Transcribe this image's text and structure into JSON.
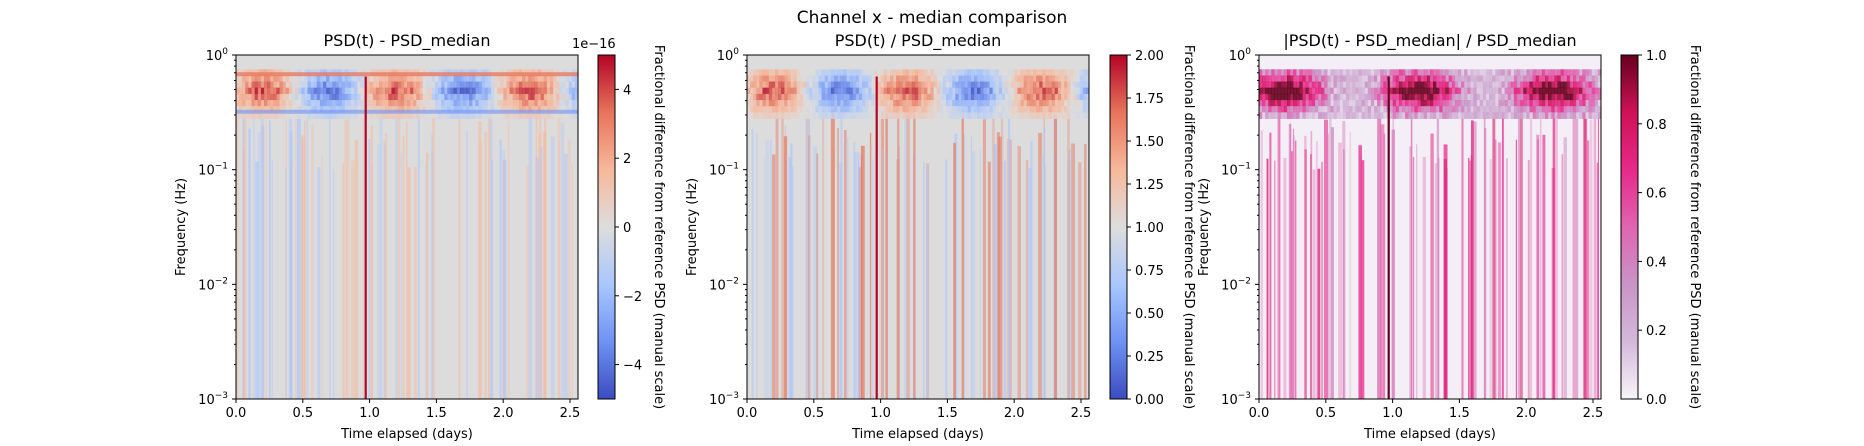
{
  "figure": {
    "suptitle": "Channel x - median comparison"
  },
  "colors": {
    "coolwarm": [
      "#3b4cc0",
      "#6f92f3",
      "#aac7fd",
      "#dddddd",
      "#f7b89c",
      "#e7745b",
      "#b40426"
    ],
    "pink": [
      "#f7f4f9",
      "#d4b9da",
      "#c994c7",
      "#df65b0",
      "#e7298a",
      "#ce1256",
      "#67001f"
    ],
    "background_diverging": "#dcdcdc",
    "background_sequential": "#f4eff6"
  },
  "chart_data": [
    {
      "type": "heatmap",
      "title": "PSD(t) - PSD_median",
      "xlabel": "Time elapsed (days)",
      "ylabel": "Frequency (Hz)",
      "xlim": [
        0.0,
        2.56
      ],
      "ylim": [
        0.001,
        1.0
      ],
      "yscale": "log",
      "xticks": [
        "0.0",
        "0.5",
        "1.0",
        "1.5",
        "2.0",
        "2.5"
      ],
      "yticks": [
        "10^0",
        "10^-1",
        "10^-2",
        "10^-3"
      ],
      "colormap": "coolwarm",
      "colorbar": {
        "label": "Fractional difference from reference PSD (manual scale)",
        "offset_text": "1e−16",
        "range": [
          -5,
          5
        ],
        "ticks": [
          "4",
          "2",
          "0",
          "−2",
          "−4"
        ],
        "tick_values": [
          4,
          2,
          0,
          -2,
          -4
        ]
      },
      "spike_day": 0.97
    },
    {
      "type": "heatmap",
      "title": "PSD(t) / PSD_median",
      "xlabel": "Time elapsed (days)",
      "ylabel": "Frequency (Hz)",
      "xlim": [
        0.0,
        2.56
      ],
      "ylim": [
        0.001,
        1.0
      ],
      "yscale": "log",
      "xticks": [
        "0.0",
        "0.5",
        "1.0",
        "1.5",
        "2.0",
        "2.5"
      ],
      "yticks": [
        "10^0",
        "10^-1",
        "10^-2",
        "10^-3"
      ],
      "colormap": "coolwarm",
      "colorbar": {
        "label": "Fractional difference from reference PSD (manual scale)",
        "offset_text": "",
        "range": [
          0.0,
          2.0
        ],
        "ticks": [
          "2.00",
          "1.75",
          "1.50",
          "1.25",
          "1.00",
          "0.75",
          "0.50",
          "0.25",
          "0.00"
        ],
        "tick_values": [
          2.0,
          1.75,
          1.5,
          1.25,
          1.0,
          0.75,
          0.5,
          0.25,
          0.0
        ]
      },
      "spike_day": 0.97
    },
    {
      "type": "heatmap",
      "title": "|PSD(t) - PSD_median| / PSD_median",
      "xlabel": "Time elapsed (days)",
      "ylabel": "Frequency (Hz)",
      "xlim": [
        0.0,
        2.56
      ],
      "ylim": [
        0.001,
        1.0
      ],
      "yscale": "log",
      "xticks": [
        "0.0",
        "0.5",
        "1.0",
        "1.5",
        "2.0",
        "2.5"
      ],
      "yticks": [
        "10^0",
        "10^-1",
        "10^-2",
        "10^-3"
      ],
      "colormap": "PuRd",
      "colorbar": {
        "label": "Fractional difference from reference PSD (manual scale)",
        "offset_text": "",
        "range": [
          0.0,
          1.0
        ],
        "ticks": [
          "1.0",
          "0.8",
          "0.6",
          "0.4",
          "0.2",
          "0.0"
        ],
        "tick_values": [
          1.0,
          0.8,
          0.6,
          0.4,
          0.2,
          0.0
        ]
      },
      "spike_day": 0.97
    }
  ]
}
